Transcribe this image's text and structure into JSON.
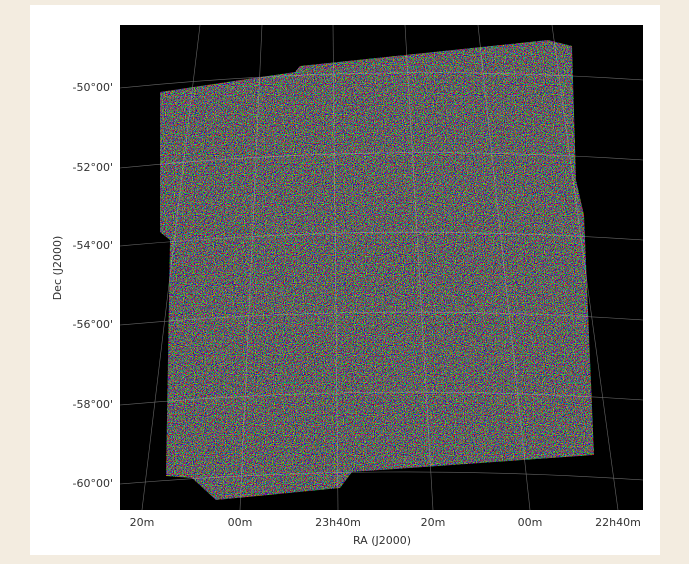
{
  "plot": {
    "x_axis_label": "RA (J2000)",
    "y_axis_label": "Dec (J2000)",
    "x_tick_labels": [
      "20m",
      "00m",
      "23h40m",
      "20m",
      "00m",
      "22h40m"
    ],
    "y_tick_labels": [
      "-50°00'",
      "-52°00'",
      "-54°00'",
      "-56°00'",
      "-58°00'",
      "-60°00'"
    ]
  }
}
